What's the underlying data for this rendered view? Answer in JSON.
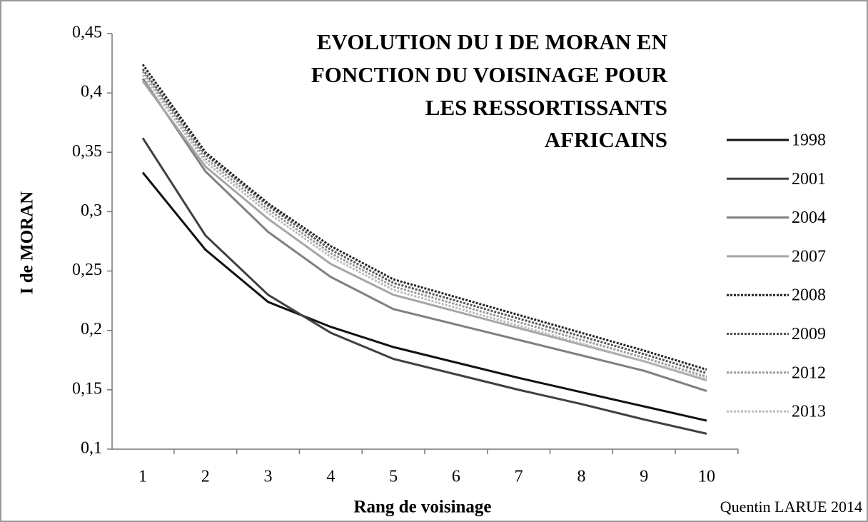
{
  "chart_data": {
    "type": "line",
    "title": [
      "EVOLUTION DU I DE MORAN EN",
      "FONCTION DU VOISINAGE POUR",
      "LES RESSORTISSANTS",
      "AFRICAINS"
    ],
    "x_label": "Rang de voisinage",
    "y_label": "I de MORAN",
    "credit": "Quentin LARUE 2014",
    "categories": [
      "1",
      "2",
      "3",
      "4",
      "5",
      "6",
      "7",
      "8",
      "9",
      "10"
    ],
    "ylim": [
      0.1,
      0.45
    ],
    "yticks": [
      {
        "value": 0.1,
        "label": "0,1"
      },
      {
        "value": 0.15,
        "label": "0,15"
      },
      {
        "value": 0.2,
        "label": "0,2"
      },
      {
        "value": 0.25,
        "label": "0,25"
      },
      {
        "value": 0.3,
        "label": "0,3"
      },
      {
        "value": 0.35,
        "label": "0,35"
      },
      {
        "value": 0.4,
        "label": "0,4"
      },
      {
        "value": 0.45,
        "label": "0,45"
      }
    ],
    "legend": "right",
    "series": [
      {
        "name": "1998",
        "color": "#111111",
        "style": "solid",
        "values": [
          0.333,
          0.268,
          0.224,
          0.203,
          0.186,
          0.173,
          0.16,
          0.148,
          0.136,
          0.124
        ]
      },
      {
        "name": "2001",
        "color": "#404040",
        "style": "solid",
        "values": [
          0.362,
          0.28,
          0.23,
          0.198,
          0.176,
          0.163,
          0.15,
          0.138,
          0.125,
          0.113
        ]
      },
      {
        "name": "2004",
        "color": "#808080",
        "style": "solid",
        "values": [
          0.412,
          0.334,
          0.283,
          0.245,
          0.218,
          0.205,
          0.192,
          0.179,
          0.166,
          0.149
        ]
      },
      {
        "name": "2007",
        "color": "#a6a6a6",
        "style": "solid",
        "values": [
          0.41,
          0.338,
          0.294,
          0.256,
          0.23,
          0.216,
          0.202,
          0.188,
          0.174,
          0.158
        ]
      },
      {
        "name": "2008",
        "color": "#222222",
        "style": "dotted",
        "values": [
          0.424,
          0.35,
          0.307,
          0.271,
          0.243,
          0.228,
          0.213,
          0.198,
          0.183,
          0.167
        ]
      },
      {
        "name": "2009",
        "color": "#555555",
        "style": "dotted",
        "values": [
          0.42,
          0.348,
          0.305,
          0.268,
          0.24,
          0.225,
          0.21,
          0.195,
          0.18,
          0.164
        ]
      },
      {
        "name": "2012",
        "color": "#999999",
        "style": "dotted",
        "values": [
          0.418,
          0.345,
          0.302,
          0.265,
          0.237,
          0.222,
          0.207,
          0.192,
          0.177,
          0.161
        ]
      },
      {
        "name": "2013",
        "color": "#bbbbbb",
        "style": "dotted",
        "values": [
          0.415,
          0.342,
          0.299,
          0.262,
          0.234,
          0.219,
          0.204,
          0.189,
          0.174,
          0.159
        ]
      }
    ]
  }
}
